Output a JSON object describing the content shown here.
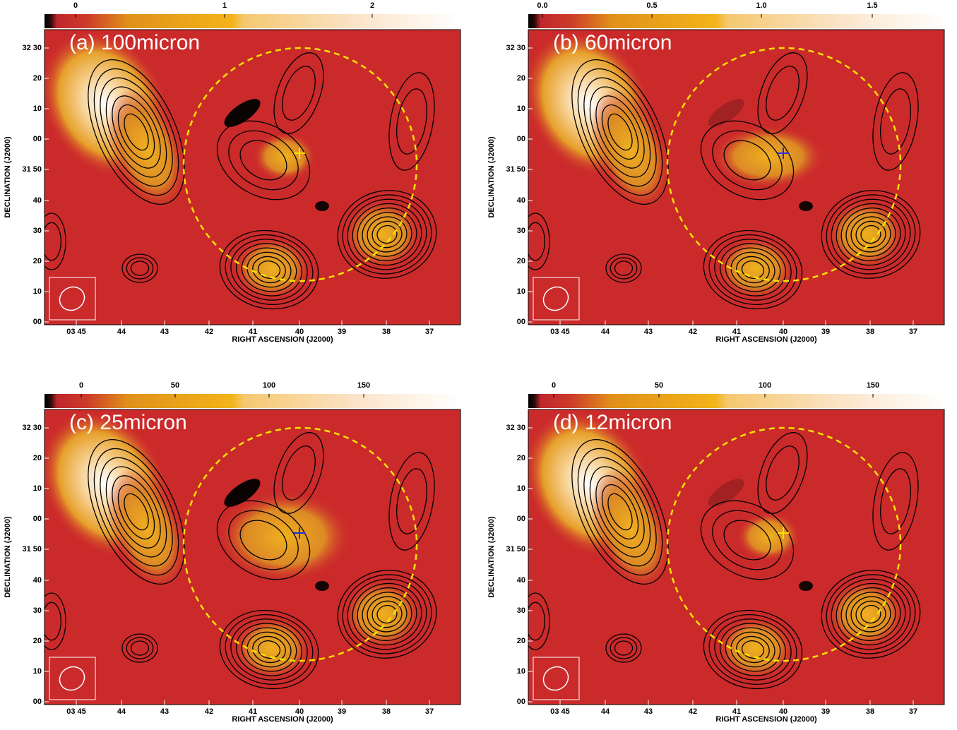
{
  "panels": [
    {
      "label": "(a) 100micron",
      "colorbar_ticks": [
        "0",
        "1",
        "2"
      ],
      "x_ticks": [
        "03 45",
        "44",
        "43",
        "42",
        "41",
        "40",
        "39",
        "38",
        "37"
      ],
      "y_ticks": [
        "32 30",
        "20",
        "10",
        "00",
        "31 50",
        "40",
        "30",
        "20",
        "10",
        "00"
      ],
      "x_label": "RIGHT ASCENSION (J2000)",
      "y_label": "DECLINATION (J2000)"
    },
    {
      "label": "(b) 60micron",
      "colorbar_ticks": [
        "0.0",
        "0.5",
        "1.0",
        "1.5"
      ],
      "x_ticks": [
        "03 45",
        "44",
        "43",
        "42",
        "41",
        "40",
        "39",
        "38",
        "37"
      ],
      "y_ticks": [
        "32 30",
        "20",
        "10",
        "00",
        "31 50",
        "40",
        "30",
        "20",
        "10",
        "00"
      ],
      "x_label": "RIGHT ASCENSION (J2000)",
      "y_label": "DECLINATION (J2000)"
    },
    {
      "label": "(c) 25micron",
      "colorbar_ticks": [
        "0",
        "50",
        "100",
        "150"
      ],
      "x_ticks": [
        "03 45",
        "44",
        "43",
        "42",
        "41",
        "40",
        "39",
        "38",
        "37"
      ],
      "y_ticks": [
        "32 30",
        "20",
        "10",
        "00",
        "31 50",
        "40",
        "30",
        "20",
        "10",
        "00"
      ],
      "x_label": "RIGHT ASCENSION (J2000)",
      "y_label": "DECLINATION (J2000)"
    },
    {
      "label": "(d) 12micron",
      "colorbar_ticks": [
        "0",
        "50",
        "100",
        "150"
      ],
      "x_ticks": [
        "03 45",
        "44",
        "43",
        "42",
        "41",
        "40",
        "39",
        "38",
        "37"
      ],
      "y_ticks": [
        "32 30",
        "20",
        "10",
        "00",
        "31 50",
        "40",
        "30",
        "20",
        "10",
        "00"
      ],
      "x_label": "RIGHT ASCENSION (J2000)",
      "y_label": "DECLINATION (J2000)"
    }
  ]
}
